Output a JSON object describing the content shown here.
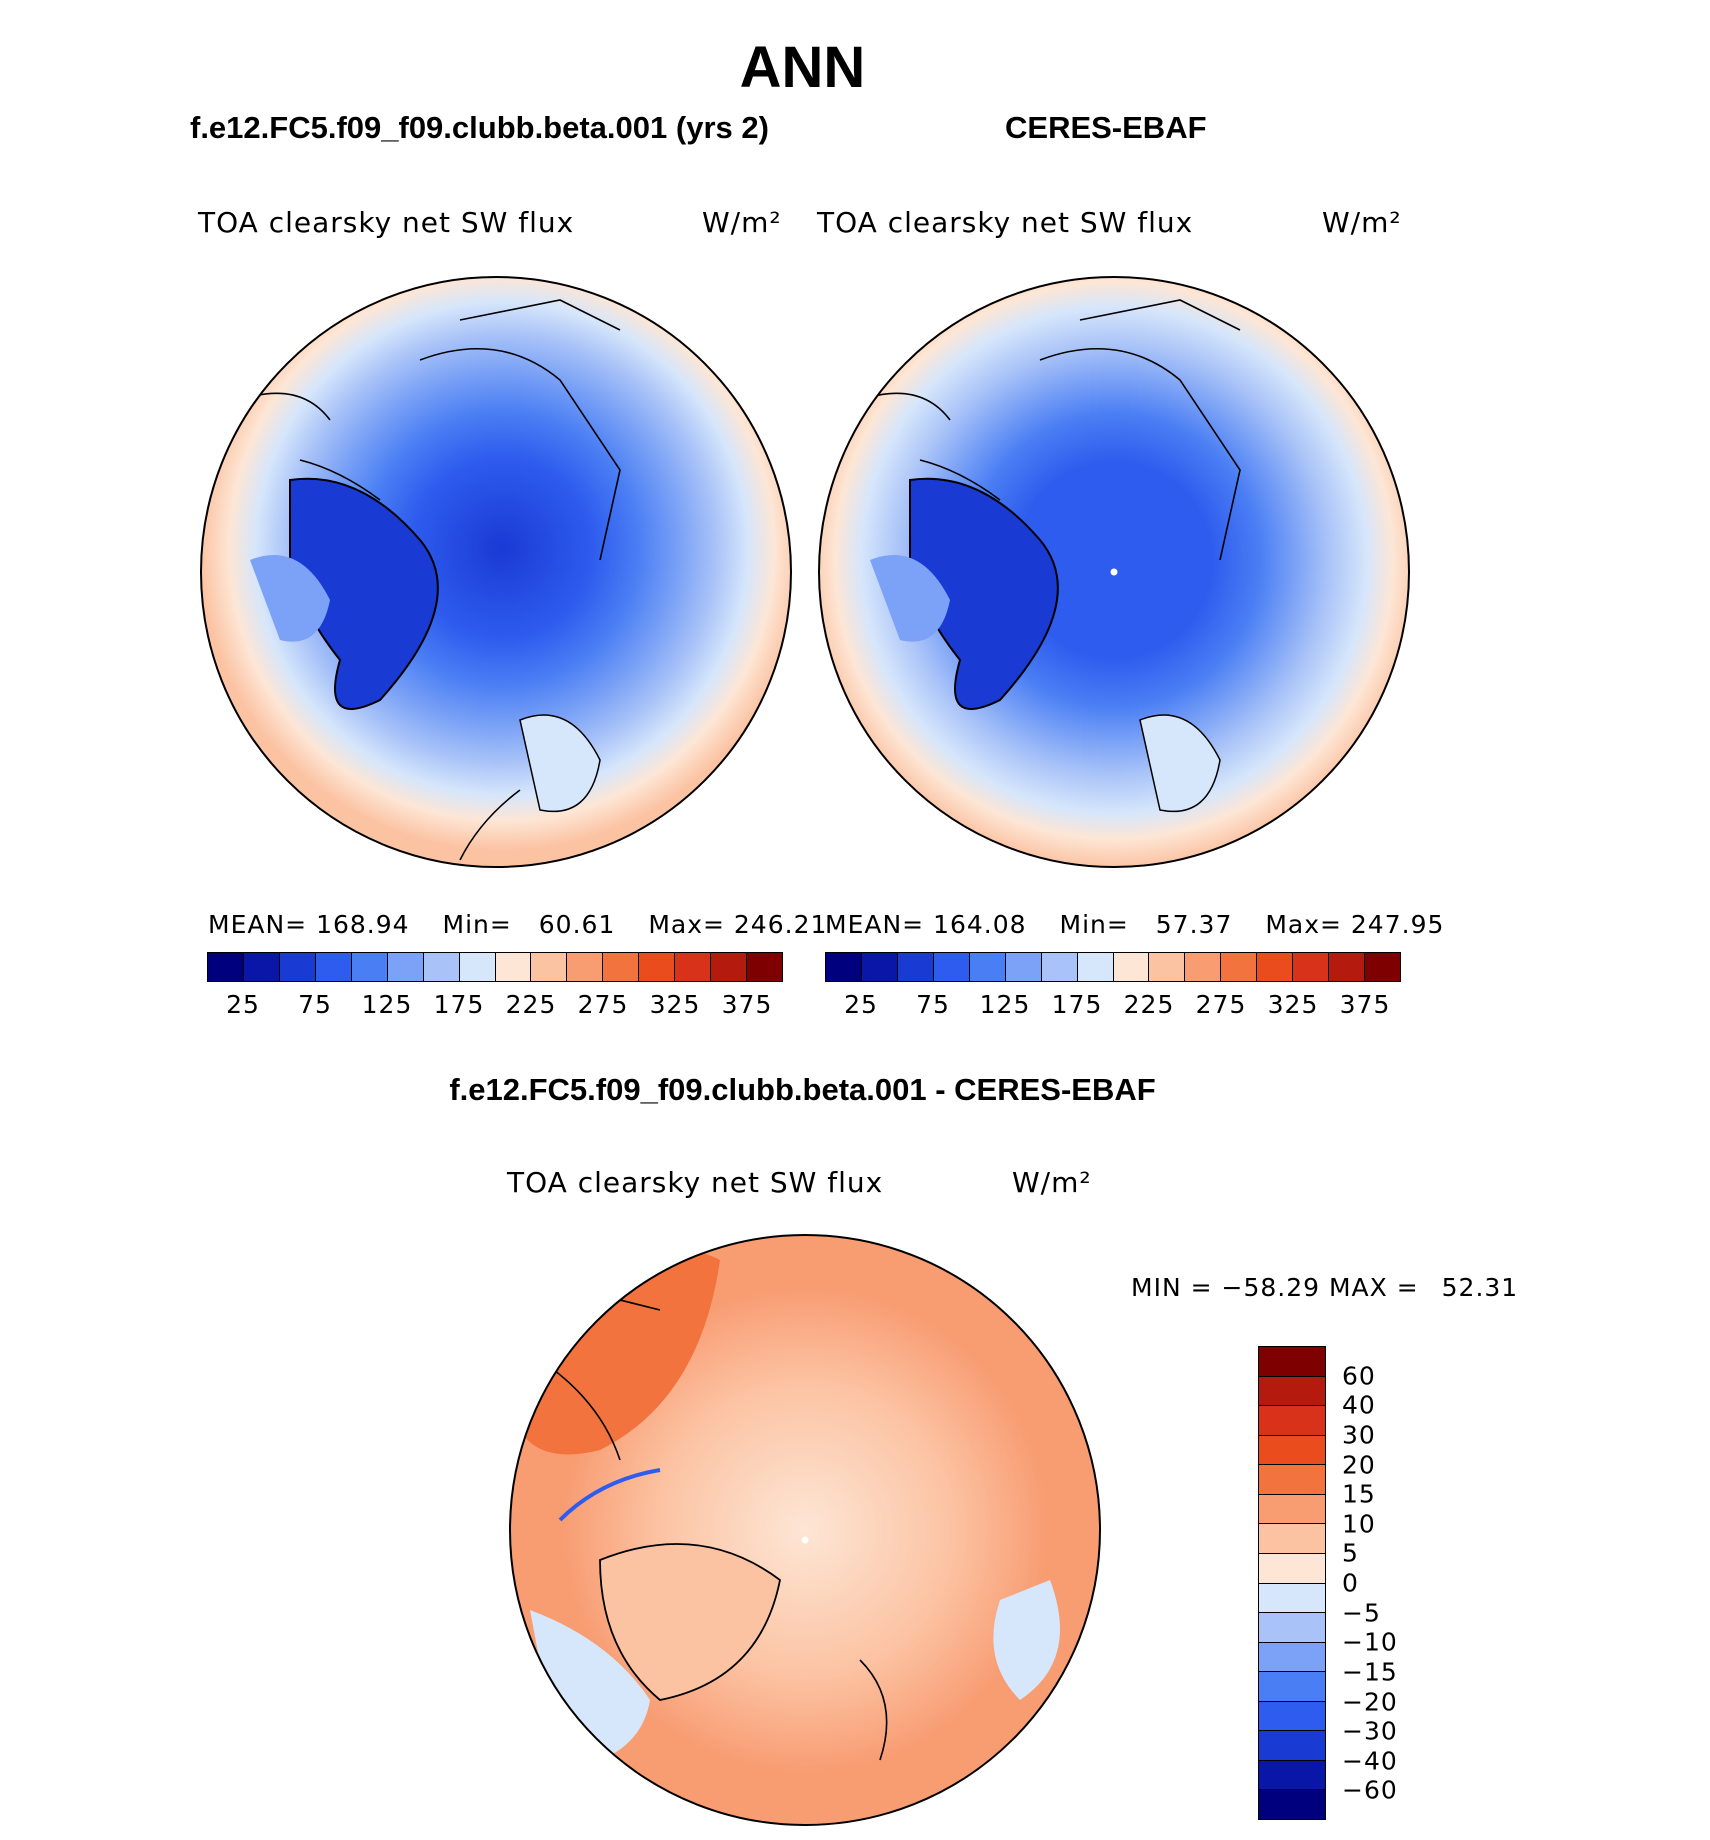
{
  "title": "ANN",
  "panels": {
    "model": {
      "case_title": "f.e12.FC5.f09_f09.clubb.beta.001 (yrs 2)",
      "variable": "TOA clearsky net SW flux",
      "units": "W/m²",
      "mean_label": "MEAN=",
      "mean": "168.94",
      "min_label": "Min=",
      "min": "60.61",
      "max_label": "Max=",
      "max": "246.21"
    },
    "obs": {
      "case_title": "CERES-EBAF",
      "variable": "TOA clearsky net SW flux",
      "units": "W/m²",
      "mean_label": "MEAN=",
      "mean": "164.08",
      "min_label": "Min=",
      "min": "57.37",
      "max_label": "Max=",
      "max": "247.95"
    },
    "diff": {
      "case_title": "f.e12.FC5.f09_f09.clubb.beta.001 - CERES-EBAF",
      "variable": "TOA clearsky net SW flux",
      "units": "W/m²",
      "min_label": "MIN =",
      "min": "−58.29",
      "max_label": "MAX =",
      "max": "52.31"
    }
  },
  "colorbar_abs": {
    "colors": [
      "#00007f",
      "#0a16a8",
      "#1a3ad4",
      "#2e5cee",
      "#4a7ef4",
      "#7ba2f6",
      "#a9c3f8",
      "#d6e6fb",
      "#fde6d5",
      "#fcc3a3",
      "#f89c72",
      "#f2733e",
      "#ea4c1e",
      "#d8321a",
      "#b41a0e",
      "#7f0000"
    ],
    "tick_labels": [
      "25",
      "75",
      "125",
      "175",
      "225",
      "275",
      "325",
      "375"
    ]
  },
  "colorbar_diff": {
    "colors": [
      "#00007f",
      "#0a16a8",
      "#1a3ad4",
      "#2e5cee",
      "#4a7ef4",
      "#7ba2f6",
      "#a9c3f8",
      "#d6e6fb",
      "#fde6d5",
      "#fcc3a3",
      "#f89c72",
      "#f2733e",
      "#ea4c1e",
      "#d8321a",
      "#b41a0e",
      "#7f0000"
    ],
    "tick_labels": [
      "60",
      "40",
      "30",
      "20",
      "15",
      "10",
      "5",
      "0",
      "−5",
      "−10",
      "−15",
      "−20",
      "−30",
      "−40",
      "−60"
    ]
  }
}
